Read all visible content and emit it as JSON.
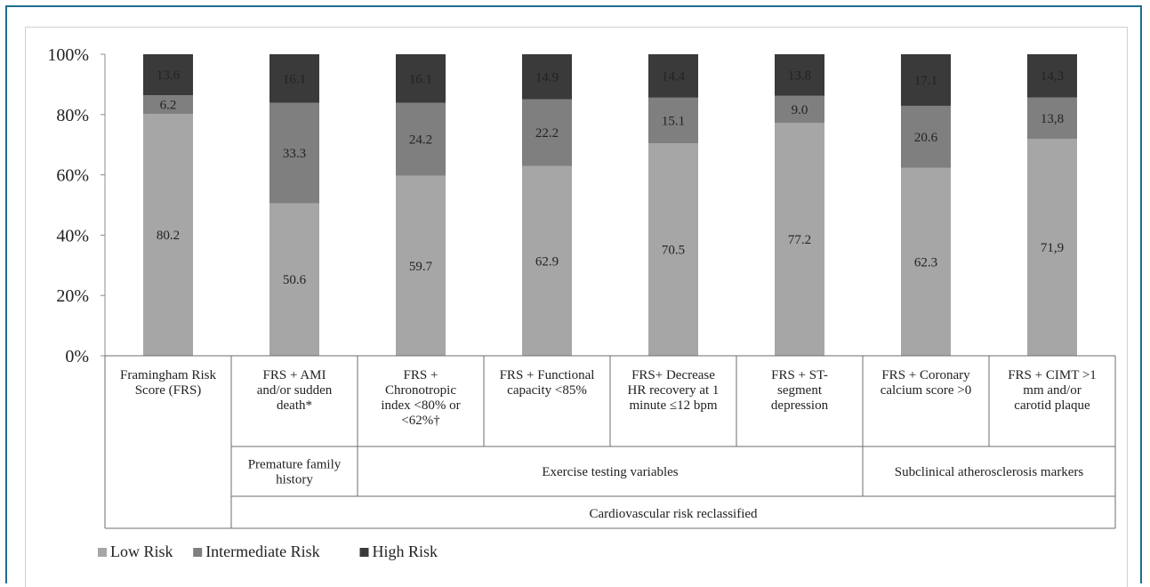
{
  "chart_data": {
    "type": "bar",
    "stacked": true,
    "y_axis": {
      "ylim": [
        0,
        100
      ],
      "ticks": [
        "0%",
        "20%",
        "40%",
        "60%",
        "80%",
        "100%"
      ]
    },
    "categories": [
      [
        "Framingham Risk",
        "Score (FRS)"
      ],
      [
        "FRS + AMI",
        "and/or sudden",
        "death*"
      ],
      [
        "FRS +",
        "Chronotropic",
        "index <80% or",
        "<62%†"
      ],
      [
        "FRS + Functional",
        "capacity <85%"
      ],
      [
        "FRS+ Decrease",
        "HR recovery at 1",
        "minute ≤12 bpm"
      ],
      [
        "FRS + ST-",
        "segment",
        "depression"
      ],
      [
        "FRS + Coronary",
        "calcium score >0"
      ],
      [
        "FRS + CIMT >1",
        "mm and/or",
        "carotid plaque"
      ]
    ],
    "series": [
      {
        "name": "Low Risk",
        "color": "#a6a6a6",
        "values": [
          80.2,
          50.6,
          59.7,
          62.9,
          70.5,
          77.2,
          62.3,
          71.9
        ],
        "labels": [
          "80.2",
          "50.6",
          "59.7",
          "62.9",
          "70.5",
          "77.2",
          "62.3",
          "71,9"
        ],
        "label_color": "#222222"
      },
      {
        "name": "Intermediate Risk",
        "color": "#7f7f7f",
        "values": [
          6.2,
          33.3,
          24.2,
          22.2,
          15.1,
          9.0,
          20.6,
          13.8
        ],
        "labels": [
          "6.2",
          "33.3",
          "24.2",
          "22.2",
          "15.1",
          "9.0",
          "20.6",
          "13,8"
        ],
        "label_color": "#f2f2f2"
      },
      {
        "name": "High Risk",
        "color": "#3a3a3a",
        "values": [
          13.6,
          16.1,
          16.1,
          14.9,
          14.4,
          13.8,
          17.1,
          14.3
        ],
        "labels": [
          "13.6",
          "16.1",
          "16.1",
          "14.9",
          "14.4",
          "13.8",
          "17.1",
          "14,3"
        ],
        "label_color": "#ffffff"
      }
    ],
    "groups": [
      {
        "label": "Premature family history",
        "label_lines": [
          "Premature family",
          "history"
        ],
        "from": 1,
        "to": 1
      },
      {
        "label": "Exercise testing variables",
        "label_lines": [
          "Exercise testing variables"
        ],
        "from": 2,
        "to": 5
      },
      {
        "label": "Subclinical atherosclerosis markers",
        "label_lines": [
          "Subclinical atherosclerosis markers"
        ],
        "from": 6,
        "to": 7
      }
    ],
    "super_group": {
      "label": "Cardiovascular risk reclassified",
      "from": 1,
      "to": 7
    },
    "legend_position": "bottom-left"
  }
}
